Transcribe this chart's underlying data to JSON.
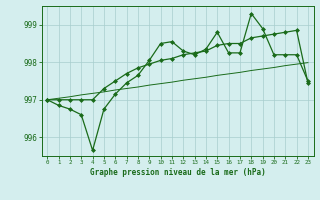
{
  "x": [
    0,
    1,
    2,
    3,
    4,
    5,
    6,
    7,
    8,
    9,
    10,
    11,
    12,
    13,
    14,
    15,
    16,
    17,
    18,
    19,
    20,
    21,
    22,
    23
  ],
  "series_a": [
    997.0,
    996.85,
    996.75,
    996.6,
    995.65,
    996.75,
    997.15,
    997.45,
    997.65,
    998.05,
    998.5,
    998.55,
    998.3,
    998.2,
    998.35,
    998.8,
    998.25,
    998.25,
    999.3,
    998.9,
    998.2,
    998.2,
    998.2,
    997.5
  ],
  "series_b": [
    997.0,
    997.0,
    997.0,
    997.0,
    997.0,
    997.3,
    997.5,
    997.7,
    997.85,
    997.95,
    998.05,
    998.1,
    998.2,
    998.25,
    998.3,
    998.45,
    998.5,
    998.5,
    998.65,
    998.7,
    998.75,
    998.8,
    998.85,
    997.45
  ],
  "trend": [
    997.0,
    997.04,
    997.08,
    997.13,
    997.17,
    997.21,
    997.26,
    997.3,
    997.34,
    997.39,
    997.43,
    997.47,
    997.52,
    997.56,
    997.6,
    997.65,
    997.69,
    997.73,
    997.78,
    997.82,
    997.86,
    997.91,
    997.95,
    997.99
  ],
  "line_color": "#1a6b1a",
  "bg_color": "#d4eeee",
  "grid_color": "#a8cece",
  "xlabel": "Graphe pression niveau de la mer (hPa)",
  "ylim": [
    995.5,
    999.5
  ],
  "xlim": [
    -0.5,
    23.5
  ],
  "yticks": [
    996,
    997,
    998,
    999
  ],
  "xticks": [
    0,
    1,
    2,
    3,
    4,
    5,
    6,
    7,
    8,
    9,
    10,
    11,
    12,
    13,
    14,
    15,
    16,
    17,
    18,
    19,
    20,
    21,
    22,
    23
  ]
}
